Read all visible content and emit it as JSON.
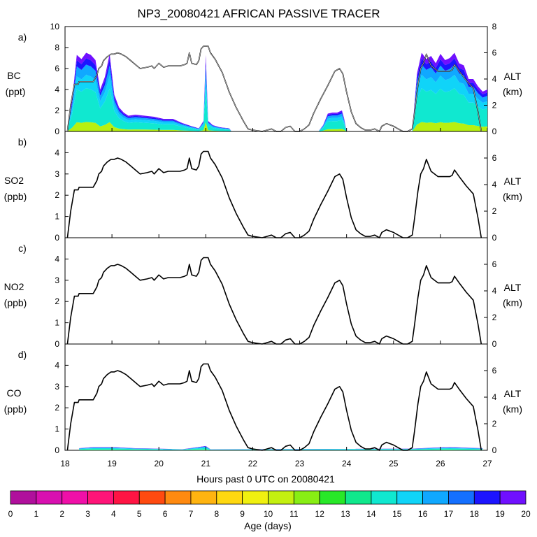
{
  "chart_data": {
    "type": "line",
    "title": "NP3_20080421 AFRICAN PASSIVE TRACER",
    "xlabel": "Hours past 0 UTC on 20080421",
    "xlim": [
      18,
      27
    ],
    "x_ticks": [
      "18",
      "19",
      "20",
      "21",
      "22",
      "23",
      "24",
      "25",
      "26",
      "27"
    ],
    "colorbar": {
      "label": "Age (days)",
      "ticks": [
        "0",
        "1",
        "2",
        "3",
        "4",
        "5",
        "6",
        "7",
        "8",
        "9",
        "10",
        "11",
        "12",
        "13",
        "14",
        "15",
        "16",
        "17",
        "18",
        "19",
        "20"
      ],
      "colors": [
        "#7a0a78",
        "#b0109c",
        "#d810b0",
        "#f010a8",
        "#ff1478",
        "#ff1444",
        "#ff4a10",
        "#ff8a10",
        "#ffb410",
        "#ffd810",
        "#f0f010",
        "#c4f010",
        "#88ee14",
        "#28e828",
        "#10e88c",
        "#10e8d0",
        "#10d4f8",
        "#10a8ff",
        "#1470ff",
        "#1c14ff",
        "#7010ff"
      ]
    },
    "altitude_series": {
      "name": "ALT (km)",
      "x": [
        18.05,
        18.12,
        18.2,
        18.28,
        18.3,
        18.45,
        18.6,
        18.68,
        18.72,
        18.78,
        18.82,
        18.9,
        18.98,
        19.05,
        19.12,
        19.2,
        19.3,
        19.4,
        19.5,
        19.6,
        19.75,
        19.85,
        19.9,
        20.0,
        20.1,
        20.2,
        20.3,
        20.45,
        20.55,
        20.6,
        20.65,
        20.7,
        20.8,
        20.85,
        20.9,
        20.95,
        21.05,
        21.1,
        21.2,
        21.35,
        21.5,
        21.65,
        21.8,
        21.9,
        22.0,
        22.1,
        22.2,
        22.3,
        22.4,
        22.5,
        22.6,
        22.7,
        22.8,
        22.9,
        23.0,
        23.1,
        23.2,
        23.3,
        23.45,
        23.6,
        23.75,
        23.85,
        23.92,
        24.0,
        24.1,
        24.2,
        24.3,
        24.4,
        24.5,
        24.6,
        24.7,
        24.75,
        24.85,
        25.0,
        25.1,
        25.2,
        25.3,
        25.4,
        25.45,
        25.52,
        25.58,
        25.64,
        25.7,
        25.8,
        25.95,
        26.1,
        26.2,
        26.25,
        26.3,
        26.4,
        26.55,
        26.7,
        26.8,
        26.87
      ],
      "y": [
        0.0,
        2.0,
        3.6,
        3.6,
        3.8,
        3.8,
        3.8,
        4.3,
        4.8,
        5.0,
        5.4,
        5.7,
        5.9,
        5.9,
        6.0,
        5.9,
        5.7,
        5.4,
        5.1,
        4.8,
        4.9,
        5.0,
        4.8,
        5.2,
        4.9,
        5.0,
        5.0,
        5.0,
        5.1,
        5.2,
        6.0,
        5.2,
        5.1,
        5.4,
        6.3,
        6.5,
        6.5,
        6.0,
        5.5,
        4.5,
        3.0,
        1.8,
        0.8,
        0.2,
        0.1,
        0.05,
        0.0,
        0.1,
        0.2,
        0.0,
        0.0,
        0.3,
        0.4,
        0.0,
        0.0,
        0.2,
        0.5,
        1.4,
        2.5,
        3.5,
        4.6,
        4.8,
        4.4,
        3.0,
        1.5,
        0.6,
        0.3,
        0.1,
        0.1,
        0.2,
        0.0,
        0.4,
        0.6,
        0.4,
        0.2,
        0.0,
        0.0,
        0.2,
        1.5,
        3.5,
        4.8,
        5.2,
        5.9,
        5.0,
        4.6,
        4.6,
        4.6,
        4.7,
        5.1,
        4.6,
        3.9,
        3.3,
        1.5,
        0.0
      ]
    },
    "panels": [
      {
        "label": "a)",
        "species": "BC",
        "units": "(ppt)",
        "ylim": [
          0,
          10
        ],
        "y_ticks": [
          "0",
          "2",
          "4",
          "6",
          "8",
          "10"
        ],
        "alt_scale_max": 8,
        "alt_ticks": [
          "0",
          "2",
          "4",
          "6",
          "8"
        ],
        "alt_label": "ALT",
        "alt_units": "(km)",
        "tracer_x": [
          18.05,
          18.15,
          18.25,
          18.35,
          18.45,
          18.55,
          18.65,
          18.75,
          18.85,
          18.95,
          19.05,
          19.15,
          19.25,
          19.35,
          19.5,
          19.7,
          19.9,
          20.1,
          20.3,
          20.5,
          20.7,
          20.85,
          20.95,
          21.0,
          21.05,
          21.15,
          21.3,
          21.5,
          21.55,
          23.4,
          23.5,
          23.6,
          23.7,
          23.8,
          23.9,
          23.95,
          24.0,
          25.4,
          25.5,
          25.6,
          25.7,
          25.8,
          25.9,
          26.0,
          26.1,
          26.2,
          26.3,
          26.4,
          26.5,
          26.6,
          26.7,
          26.8,
          26.9,
          27.0
        ],
        "tracer_total": [
          0.3,
          3.0,
          7.3,
          6.9,
          7.5,
          7.3,
          6.8,
          4.0,
          5.2,
          7.4,
          3.5,
          2.3,
          1.8,
          1.5,
          1.6,
          1.5,
          1.4,
          1.2,
          1.2,
          0.8,
          0.5,
          0.3,
          1.0,
          7.3,
          1.0,
          0.6,
          0.4,
          0.3,
          0.0,
          0.0,
          0.6,
          1.7,
          1.8,
          1.8,
          2.0,
          1.2,
          0.0,
          0.0,
          5.5,
          7.5,
          6.9,
          7.2,
          6.5,
          7.4,
          6.8,
          7.0,
          7.5,
          6.5,
          6.3,
          5.0,
          5.0,
          4.3,
          3.8,
          4.0
        ],
        "tracer_age_mix": "mostly 13-19 days (cyan to violet), minor 10-12 days near the surface"
      },
      {
        "label": "b)",
        "species": "SO2",
        "units": "(ppb)",
        "ylim": [
          0,
          5
        ],
        "y_ticks": [
          "0",
          "1",
          "2",
          "3",
          "4"
        ],
        "alt_scale_max": 8,
        "alt_ticks": [
          "0",
          "2",
          "4",
          "6"
        ],
        "alt_label": "ALT",
        "alt_units": "(km)"
      },
      {
        "label": "c)",
        "species": "NO2",
        "units": "(ppb)",
        "ylim": [
          0,
          5
        ],
        "y_ticks": [
          "0",
          "1",
          "2",
          "3",
          "4"
        ],
        "alt_scale_max": 8,
        "alt_ticks": [
          "0",
          "2",
          "4",
          "6"
        ],
        "alt_label": "ALT",
        "alt_units": "(km)"
      },
      {
        "label": "d)",
        "species": "CO",
        "units": "(ppb)",
        "ylim": [
          0,
          5
        ],
        "y_ticks": [
          "0",
          "1",
          "2",
          "3",
          "4"
        ],
        "alt_scale_max": 8,
        "alt_ticks": [
          "0",
          "2",
          "4",
          "6"
        ],
        "alt_label": "ALT",
        "alt_units": "(km)",
        "tracer_x": [
          18.3,
          18.6,
          19.0,
          19.5,
          20.0,
          20.5,
          21.0,
          21.1,
          25.4,
          25.8,
          26.2,
          26.6,
          26.9
        ],
        "tracer_total": [
          0.1,
          0.15,
          0.15,
          0.1,
          0.08,
          0.05,
          0.2,
          0.05,
          0.08,
          0.12,
          0.15,
          0.12,
          0.1
        ],
        "tracer_age_mix": "mostly 14-18 days (cyan to blue)"
      }
    ]
  }
}
